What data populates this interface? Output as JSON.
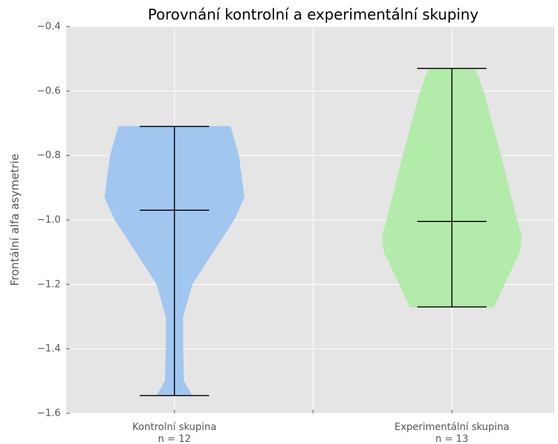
{
  "chart_data": {
    "type": "violin",
    "title": "Porovnání kontrolní a experimentální skupiny",
    "ylabel": "Frontální alfa asymetrie",
    "categories": [
      "Kontrolní skupina",
      "Experimentální skupina"
    ],
    "sample_labels": [
      "n = 12",
      "n = 13"
    ],
    "positions": [
      1,
      2
    ],
    "xlim": [
      0.61,
      2.37
    ],
    "xticks": [
      1,
      1.5,
      2
    ],
    "ylim": [
      -1.6,
      -0.4
    ],
    "yticks": [
      {
        "value": -1.6,
        "label": "−1.6"
      },
      {
        "value": -1.4,
        "label": "−1.4"
      },
      {
        "value": -1.2,
        "label": "−1.2"
      },
      {
        "value": -1.0,
        "label": "−1.0"
      },
      {
        "value": -0.8,
        "label": "−0.8"
      },
      {
        "value": -0.6,
        "label": "−0.6"
      },
      {
        "value": -0.4,
        "label": "−0.4"
      }
    ],
    "grid": true,
    "series": [
      {
        "name": "Kontrolní skupina",
        "color": "#a1c6ef",
        "max": -0.71,
        "median": -0.97,
        "min": -1.545,
        "profile_y": [
          -0.71,
          -0.8,
          -0.93,
          -1.0,
          -1.1,
          -1.2,
          -1.3,
          -1.4,
          -1.5,
          -1.545
        ],
        "profile_width": [
          0.201,
          0.231,
          0.251,
          0.214,
          0.138,
          0.063,
          0.03,
          0.03,
          0.033,
          0.063
        ]
      },
      {
        "name": "Experimentální skupina",
        "color": "#b3ebaa",
        "max": -0.53,
        "median": -1.005,
        "min": -1.27,
        "profile_y": [
          -0.53,
          -0.6,
          -0.8,
          -1.0,
          -1.05,
          -1.1,
          -1.2,
          -1.27
        ],
        "profile_width": [
          0.083,
          0.113,
          0.176,
          0.234,
          0.251,
          0.244,
          0.188,
          0.151
        ]
      }
    ]
  }
}
